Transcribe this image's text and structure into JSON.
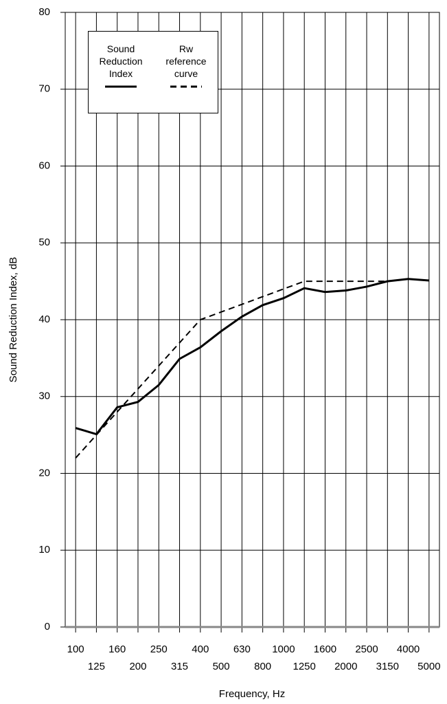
{
  "chart_data": {
    "type": "line",
    "xlabel": "Frequency, Hz",
    "ylabel": "Sound Reduction Index, dB",
    "categories": [
      "100",
      "125",
      "160",
      "200",
      "250",
      "315",
      "400",
      "500",
      "630",
      "800",
      "1000",
      "1250",
      "1600",
      "2000",
      "2500",
      "3150",
      "4000",
      "5000"
    ],
    "series": [
      {
        "name": "Sound Reduction Index",
        "color": "#000000",
        "dash": "solid",
        "values": [
          25.9,
          25.1,
          28.6,
          29.3,
          31.5,
          34.9,
          36.4,
          38.5,
          40.4,
          41.9,
          42.8,
          44.1,
          43.6,
          43.8,
          44.3,
          45.0,
          45.3,
          45.1
        ]
      },
      {
        "name": "Rw reference curve",
        "color": "#000000",
        "dash": "dashed",
        "values": [
          22,
          25,
          28,
          31,
          34,
          37,
          40,
          41,
          42,
          43,
          44,
          45,
          45,
          45,
          45,
          45,
          null,
          null
        ]
      }
    ],
    "ylim": [
      0,
      80
    ],
    "yticks": [
      0,
      10,
      20,
      30,
      40,
      50,
      60,
      70,
      80
    ],
    "grid": true,
    "legend": "upper left"
  }
}
